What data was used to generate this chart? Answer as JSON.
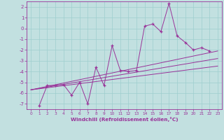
{
  "xlabel": "Windchill (Refroidissement éolien,°C)",
  "xlim": [
    -0.5,
    23.5
  ],
  "ylim": [
    -7.5,
    2.5
  ],
  "xticks": [
    0,
    1,
    2,
    3,
    4,
    5,
    6,
    7,
    8,
    9,
    10,
    11,
    12,
    13,
    14,
    15,
    16,
    17,
    18,
    19,
    20,
    21,
    22,
    23
  ],
  "yticks": [
    2,
    1,
    0,
    -1,
    -2,
    -3,
    -4,
    -5,
    -6,
    -7
  ],
  "bg_color": "#c2e0e0",
  "line_color": "#993399",
  "grid_color": "#9ecece",
  "scatter_x": [
    1,
    2,
    3,
    4,
    5,
    6,
    7,
    8,
    9,
    10,
    11,
    12,
    13,
    14,
    15,
    16,
    17,
    18,
    19,
    20,
    21,
    22
  ],
  "scatter_y": [
    -7.2,
    -5.3,
    -5.3,
    -5.2,
    -6.2,
    -5.0,
    -7.0,
    -3.6,
    -5.3,
    -1.6,
    -3.9,
    -4.0,
    -3.9,
    0.2,
    0.4,
    -0.3,
    2.3,
    -0.7,
    -1.3,
    -2.0,
    -1.8,
    -2.1
  ],
  "line1_x": [
    0,
    23
  ],
  "line1_y": [
    -5.7,
    -2.1
  ],
  "line2_x": [
    0,
    23
  ],
  "line2_y": [
    -5.7,
    -2.8
  ],
  "line3_x": [
    0,
    23
  ],
  "line3_y": [
    -5.7,
    -3.5
  ]
}
